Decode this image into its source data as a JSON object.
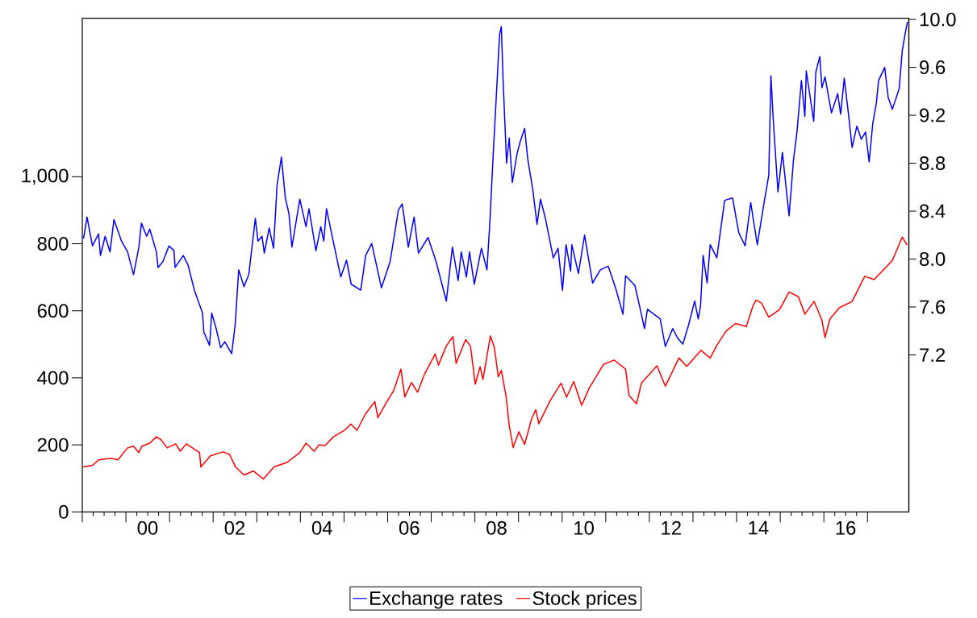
{
  "chart_data": {
    "type": "line",
    "xlim": [
      "1999-01-01",
      "2017-12-13"
    ],
    "xticks": [
      {
        "value": "1999",
        "label": null
      },
      {
        "value": "2000",
        "label": null
      },
      {
        "value": "2001",
        "label": null
      },
      {
        "value": "2002",
        "label": null
      },
      {
        "value": "2003",
        "label": null
      },
      {
        "value": "2004",
        "label": null
      },
      {
        "value": "2005",
        "label": null
      },
      {
        "value": "2006",
        "label": null
      },
      {
        "value": "2007",
        "label": null
      },
      {
        "value": "2008",
        "label": null
      },
      {
        "value": "2009",
        "label": null
      },
      {
        "value": "2010",
        "label": null
      },
      {
        "value": "2011",
        "label": null
      },
      {
        "value": "2012",
        "label": null
      },
      {
        "value": "2013",
        "label": null
      },
      {
        "value": "2014",
        "label": null
      },
      {
        "value": "2015",
        "label": null
      },
      {
        "value": "2016",
        "label": null
      },
      {
        "value": "2017",
        "label": null
      },
      {
        "value": "2000-07-01",
        "label": "00"
      },
      {
        "value": "2002-07-01",
        "label": "02"
      },
      {
        "value": "2004-07-01",
        "label": "04"
      },
      {
        "value": "2006-07-01",
        "label": "06"
      },
      {
        "value": "2008-07-01",
        "label": "08"
      },
      {
        "value": "2010-07-01",
        "label": "10"
      },
      {
        "value": "2012-07-01",
        "label": "12"
      },
      {
        "value": "2014-07-01",
        "label": "14"
      },
      {
        "value": "2016-07-01",
        "label": "16"
      }
    ],
    "ylim": [
      0,
      1473
    ],
    "yticks": [
      0,
      200,
      400,
      600,
      800,
      {
        "value": 1000,
        "label": "1,000"
      }
    ],
    "y2lim": [
      5.89,
      10.01
    ],
    "y2ticks": [
      7.2,
      7.6,
      {
        "value": 8.0,
        "label": "8.0"
      },
      8.4,
      8.8,
      9.2,
      9.6,
      {
        "value": 10.0,
        "label": "10.0"
      }
    ],
    "legend": "bottom",
    "series": [
      {
        "name": "Exchange rates",
        "color": "#0000ff",
        "axis": "y2",
        "x": [
          "1999-01-11",
          "1999-02-10",
          "1999-03-27",
          "1999-05-17",
          "1999-06-02",
          "1999-07-11",
          "1999-08-21",
          "1999-09-23",
          "1999-11-25",
          "2000-01-15",
          "2000-03-05",
          "2000-04-19",
          "2000-05-10",
          "2000-06-23",
          "2000-07-19",
          "2000-09-13",
          "2000-09-27",
          "2000-11-07",
          "2000-12-27",
          "2001-02-07",
          "2001-02-17",
          "2001-04-26",
          "2001-06-05",
          "2001-07-28",
          "2001-10-04",
          "2001-10-15",
          "2001-12-02",
          "2001-12-20",
          "2002-01-26",
          "2002-03-05",
          "2002-04-08",
          "2002-06-05",
          "2002-07-04",
          "2002-08-03",
          "2002-09-16",
          "2002-10-26",
          "2002-12-20",
          "2003-01-11",
          "2003-02-14",
          "2003-03-05",
          "2003-04-15",
          "2003-05-21",
          "2003-06-20",
          "2003-07-26",
          "2003-08-28",
          "2003-09-27",
          "2003-10-22",
          "2003-12-27",
          "2004-02-17",
          "2004-03-13",
          "2004-05-10",
          "2004-06-20",
          "2004-07-15",
          "2004-08-07",
          "2004-10-04",
          "2004-12-05",
          "2005-01-22",
          "2005-03-02",
          "2005-05-21",
          "2005-07-01",
          "2005-08-21",
          "2005-11-10",
          "2006-01-22",
          "2006-04-01",
          "2006-05-03",
          "2006-06-23",
          "2006-08-10",
          "2006-09-16",
          "2006-12-05",
          "2007-02-10",
          "2007-05-07",
          "2007-06-27",
          "2007-08-14",
          "2007-09-09",
          "2007-10-22",
          "2007-11-17",
          "2007-12-27",
          "2008-02-25",
          "2008-04-11",
          "2008-05-07",
          "2008-06-02",
          "2008-07-26",
          "2008-08-10",
          "2008-08-25",
          "2008-09-23",
          "2008-10-15",
          "2008-11-10",
          "2008-12-20",
          "2009-01-15",
          "2009-02-21",
          "2009-03-20",
          "2009-04-29",
          "2009-06-05",
          "2009-07-04",
          "2009-08-14",
          "2009-09-09",
          "2009-10-19",
          "2009-11-28",
          "2010-01-04",
          "2010-02-03",
          "2010-03-13",
          "2010-03-23",
          "2010-05-17",
          "2010-07-08",
          "2010-09-13",
          "2010-11-17",
          "2011-01-22",
          "2011-03-27",
          "2011-05-25",
          "2011-06-16",
          "2011-09-02",
          "2011-10-26",
          "2011-11-21",
          "2011-12-16",
          "2012-04-01",
          "2012-05-14",
          "2012-07-15",
          "2012-08-25",
          "2012-10-08",
          "2012-11-25",
          "2013-01-15",
          "2013-02-14",
          "2013-03-05",
          "2013-03-27",
          "2013-04-29",
          "2013-05-25",
          "2013-07-19",
          "2013-09-23",
          "2013-11-28",
          "2014-01-19",
          "2014-03-13",
          "2014-04-29",
          "2014-06-23",
          "2014-08-17",
          "2014-09-27",
          "2014-10-15",
          "2014-11-03",
          "2014-12-13",
          "2015-01-19",
          "2015-03-16",
          "2015-04-22",
          "2015-05-21",
          "2015-06-27",
          "2015-07-26",
          "2015-08-07",
          "2015-10-08",
          "2015-10-26",
          "2015-11-28",
          "2015-12-16",
          "2016-01-11",
          "2016-03-05",
          "2016-04-26",
          "2016-05-21",
          "2016-06-20",
          "2016-07-28",
          "2016-08-25",
          "2016-10-04",
          "2016-11-10",
          "2016-12-16",
          "2017-01-15",
          "2017-02-14",
          "2017-03-16",
          "2017-04-04",
          "2017-05-25",
          "2017-06-23",
          "2017-07-28",
          "2017-09-23",
          "2017-10-19",
          "2017-11-14",
          "2017-12-02"
        ],
        "values": [
          8.17,
          8.35,
          8.11,
          8.21,
          8.03,
          8.19,
          8.06,
          8.33,
          8.15,
          8.06,
          7.87,
          8.1,
          8.3,
          8.19,
          8.25,
          8.06,
          7.93,
          7.98,
          8.11,
          8.07,
          7.93,
          8.03,
          7.95,
          7.74,
          7.55,
          7.39,
          7.28,
          7.55,
          7.42,
          7.26,
          7.31,
          7.21,
          7.45,
          7.91,
          7.77,
          7.87,
          8.34,
          8.15,
          8.19,
          8.05,
          8.26,
          8.09,
          8.62,
          8.85,
          8.51,
          8.38,
          8.1,
          8.5,
          8.27,
          8.42,
          8.07,
          8.27,
          8.15,
          8.42,
          8.14,
          7.85,
          7.99,
          7.79,
          7.74,
          8.03,
          8.13,
          7.76,
          7.98,
          8.41,
          8.46,
          8.1,
          8.35,
          8.05,
          8.18,
          7.98,
          7.65,
          8.1,
          7.82,
          8.06,
          7.85,
          8.06,
          7.79,
          8.09,
          7.91,
          8.33,
          8.86,
          9.87,
          9.94,
          9.48,
          8.8,
          9.01,
          8.64,
          8.88,
          8.98,
          9.09,
          8.83,
          8.59,
          8.29,
          8.5,
          8.34,
          8.21,
          8.01,
          8.09,
          7.74,
          8.12,
          7.9,
          8.12,
          7.88,
          8.2,
          7.8,
          7.91,
          7.94,
          7.75,
          7.54,
          7.86,
          7.78,
          7.54,
          7.42,
          7.58,
          7.5,
          7.27,
          7.42,
          7.34,
          7.29,
          7.45,
          7.65,
          7.5,
          7.61,
          8.03,
          7.8,
          8.12,
          8.01,
          8.49,
          8.51,
          8.22,
          8.11,
          8.47,
          8.12,
          8.46,
          8.7,
          9.53,
          9.17,
          8.56,
          8.89,
          8.36,
          8.83,
          9.06,
          9.49,
          9.19,
          9.57,
          9.15,
          9.56,
          9.69,
          9.43,
          9.52,
          9.22,
          9.38,
          9.21,
          9.51,
          9.19,
          8.93,
          9.11,
          9.0,
          9.06,
          8.81,
          9.13,
          9.3,
          9.49,
          9.6,
          9.35,
          9.25,
          9.42,
          9.74,
          9.89,
          9.98
        ]
      },
      {
        "name": "Stock prices",
        "color": "#ff0000",
        "x": [
          "1999-01-08",
          "1999-03-27",
          "1999-05-17",
          "1999-09-02",
          "1999-10-26",
          "2000-01-15",
          "2000-03-05",
          "2000-04-19",
          "2000-05-14",
          "2000-07-19",
          "2000-09-13",
          "2000-10-22",
          "2000-12-13",
          "2001-02-21",
          "2001-04-01",
          "2001-05-21",
          "2001-09-09",
          "2001-09-20",
          "2001-12-09",
          "2002-03-23",
          "2002-05-17",
          "2002-07-08",
          "2002-09-16",
          "2002-12-05",
          "2003-02-25",
          "2003-05-25",
          "2003-09-13",
          "2003-12-27",
          "2004-02-17",
          "2004-04-26",
          "2004-06-05",
          "2004-07-26",
          "2004-10-04",
          "2005-01-04",
          "2005-02-28",
          "2005-04-19",
          "2005-06-27",
          "2005-09-16",
          "2005-10-11",
          "2006-01-01",
          "2006-02-21",
          "2006-04-22",
          "2006-05-25",
          "2006-07-19",
          "2006-09-09",
          "2006-11-03",
          "2007-02-03",
          "2007-03-02",
          "2007-05-07",
          "2007-07-01",
          "2007-07-28",
          "2007-10-15",
          "2007-11-25",
          "2008-01-04",
          "2008-02-14",
          "2008-03-09",
          "2008-05-10",
          "2008-06-13",
          "2008-07-15",
          "2008-08-10",
          "2008-09-20",
          "2008-10-15",
          "2008-11-17",
          "2009-01-04",
          "2009-02-21",
          "2009-04-19",
          "2009-05-25",
          "2009-06-20",
          "2009-09-23",
          "2009-12-23",
          "2010-02-07",
          "2010-04-08",
          "2010-06-13",
          "2010-08-17",
          "2010-12-13",
          "2011-03-13",
          "2011-06-16",
          "2011-07-15",
          "2011-09-16",
          "2011-10-26",
          "2012-03-05",
          "2012-05-14",
          "2012-09-05",
          "2012-11-10",
          "2013-03-09",
          "2013-05-25",
          "2013-07-19",
          "2013-10-04",
          "2013-12-23",
          "2014-03-23",
          "2014-05-17",
          "2014-06-13",
          "2014-07-28",
          "2014-09-27",
          "2014-12-27",
          "2015-03-16",
          "2015-06-02",
          "2015-07-26",
          "2015-10-11",
          "2015-12-16",
          "2016-01-11",
          "2016-02-21",
          "2016-05-10",
          "2016-08-25",
          "2016-12-09",
          "2017-02-25",
          "2017-05-14",
          "2017-07-28",
          "2017-10-19",
          "2017-11-28"
        ],
        "values": [
          134,
          139,
          155,
          160,
          155,
          191,
          196,
          177,
          196,
          205,
          224,
          215,
          191,
          203,
          181,
          203,
          177,
          134,
          167,
          179,
          172,
          134,
          110,
          122,
          98,
          134,
          148,
          177,
          205,
          181,
          200,
          198,
          224,
          243,
          262,
          243,
          291,
          329,
          281,
          333,
          362,
          426,
          343,
          386,
          357,
          409,
          471,
          438,
          495,
          523,
          443,
          514,
          495,
          381,
          433,
          395,
          525,
          490,
          403,
          422,
          342,
          258,
          192,
          239,
          201,
          276,
          305,
          263,
          332,
          384,
          342,
          389,
          318,
          370,
          440,
          453,
          426,
          347,
          323,
          384,
          436,
          375,
          459,
          434,
          482,
          459,
          497,
          539,
          562,
          553,
          614,
          632,
          623,
          581,
          604,
          656,
          642,
          590,
          628,
          572,
          520,
          576,
          609,
          628,
          703,
          693,
          722,
          750,
          820,
          796
        ]
      }
    ]
  }
}
